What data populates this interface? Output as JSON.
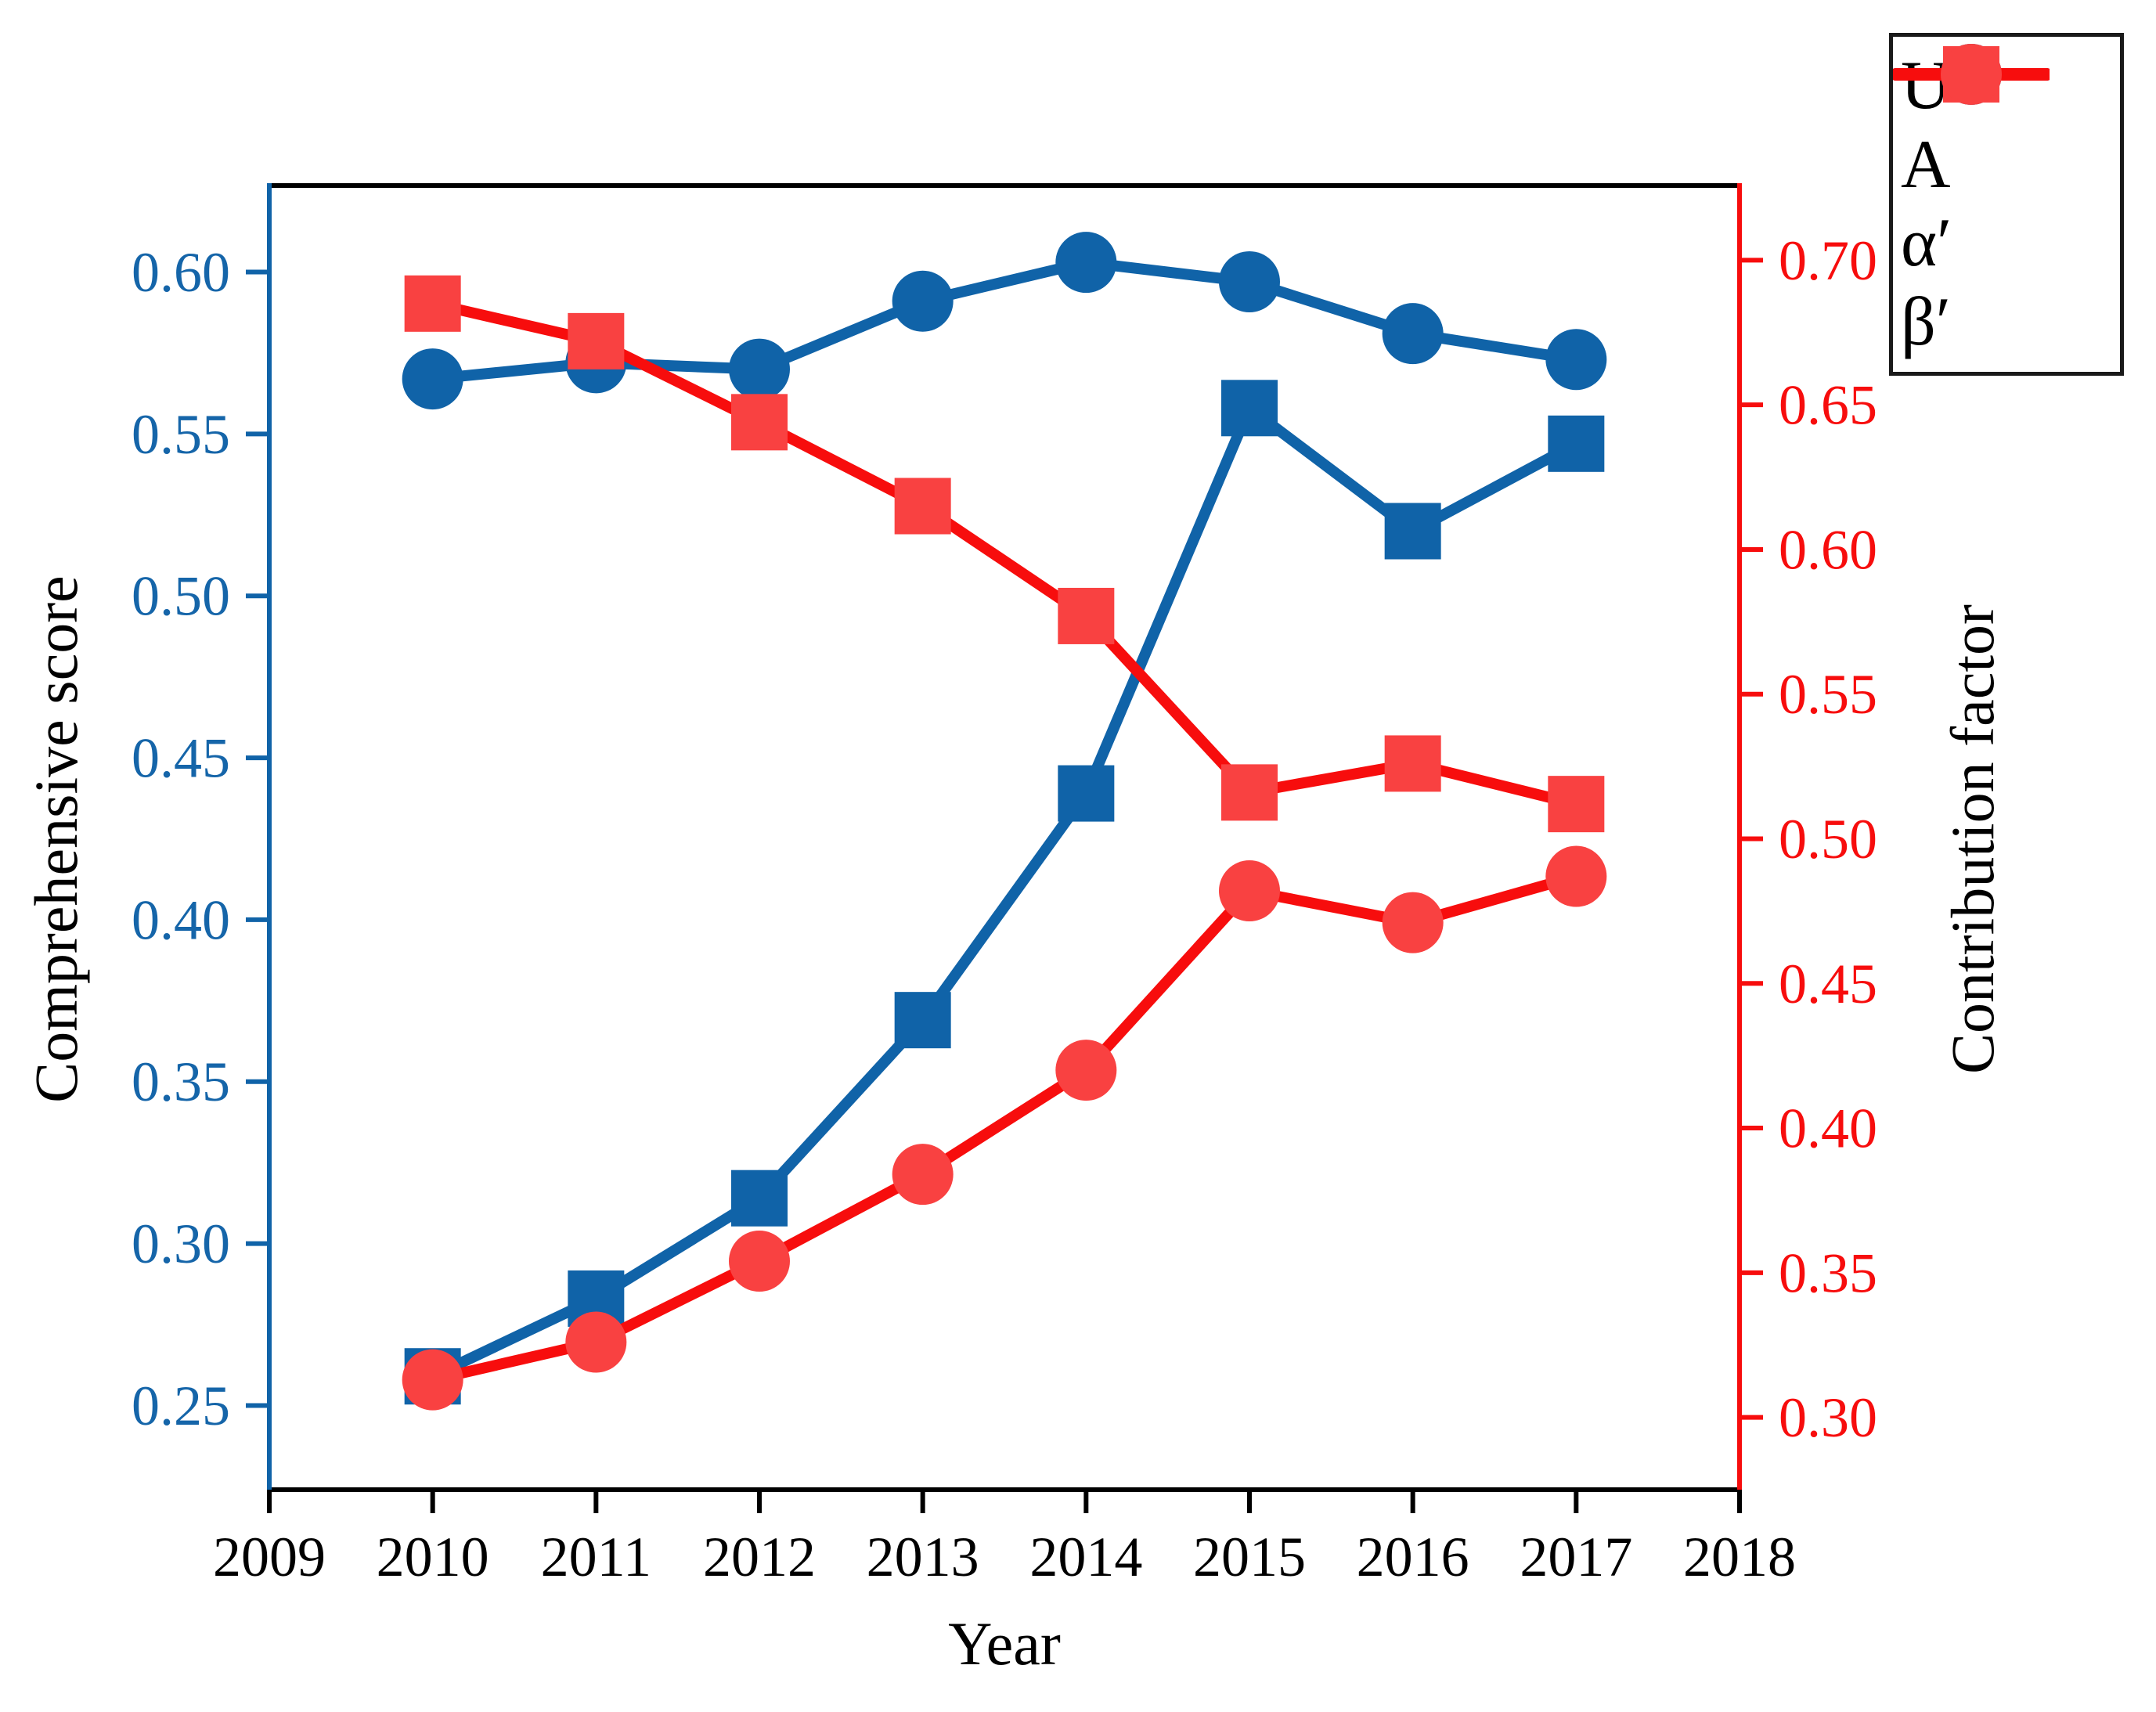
{
  "chart_data": {
    "type": "line",
    "x": [
      2010,
      2011,
      2012,
      2013,
      2014,
      2015,
      2016,
      2017
    ],
    "series": [
      {
        "name": "U",
        "axis": "left",
        "marker": "square",
        "line_color": "#1063a8",
        "marker_color": "#1063a8",
        "values": [
          0.259,
          0.283,
          0.314,
          0.369,
          0.439,
          0.558,
          0.52,
          0.547
        ]
      },
      {
        "name": "A",
        "axis": "left",
        "marker": "circle",
        "line_color": "#1063a8",
        "marker_color": "#1063a8",
        "values": [
          0.567,
          0.572,
          0.57,
          0.591,
          0.603,
          0.597,
          0.581,
          0.573
        ]
      },
      {
        "name": "α′",
        "axis": "right",
        "marker": "square",
        "line_color": "#f70d0d",
        "marker_color": "#f94141",
        "values": [
          0.685,
          0.672,
          0.644,
          0.615,
          0.577,
          0.516,
          0.526,
          0.512
        ]
      },
      {
        "name": "β′",
        "axis": "right",
        "marker": "circle",
        "line_color": "#f70d0d",
        "marker_color": "#f94141",
        "values": [
          0.313,
          0.326,
          0.354,
          0.384,
          0.42,
          0.482,
          0.471,
          0.487
        ]
      }
    ],
    "title": "",
    "xlabel": "Year",
    "ylabel_left": "Comprehensive score",
    "ylabel_right": "Contribution factor",
    "xlim": [
      2009,
      2018
    ],
    "x_ticks": [
      2009,
      2010,
      2011,
      2012,
      2013,
      2014,
      2015,
      2016,
      2017,
      2018
    ],
    "ylim_left": [
      0.224,
      0.626
    ],
    "yticks_left": [
      0.25,
      0.3,
      0.35,
      0.4,
      0.45,
      0.5,
      0.55,
      0.6
    ],
    "ylim_right": [
      0.275,
      0.725
    ],
    "yticks_right": [
      0.3,
      0.35,
      0.4,
      0.45,
      0.5,
      0.55,
      0.6,
      0.65,
      0.7
    ],
    "grid": false,
    "legend_position": "outside-top-right",
    "colors": {
      "left_axis": "#1063a8",
      "right_axis": "#f70d0d",
      "frame": "#000000",
      "left_tick_label": "#1565a9",
      "right_tick_label": "#f70d0d",
      "x_tick_label": "#000000"
    }
  }
}
